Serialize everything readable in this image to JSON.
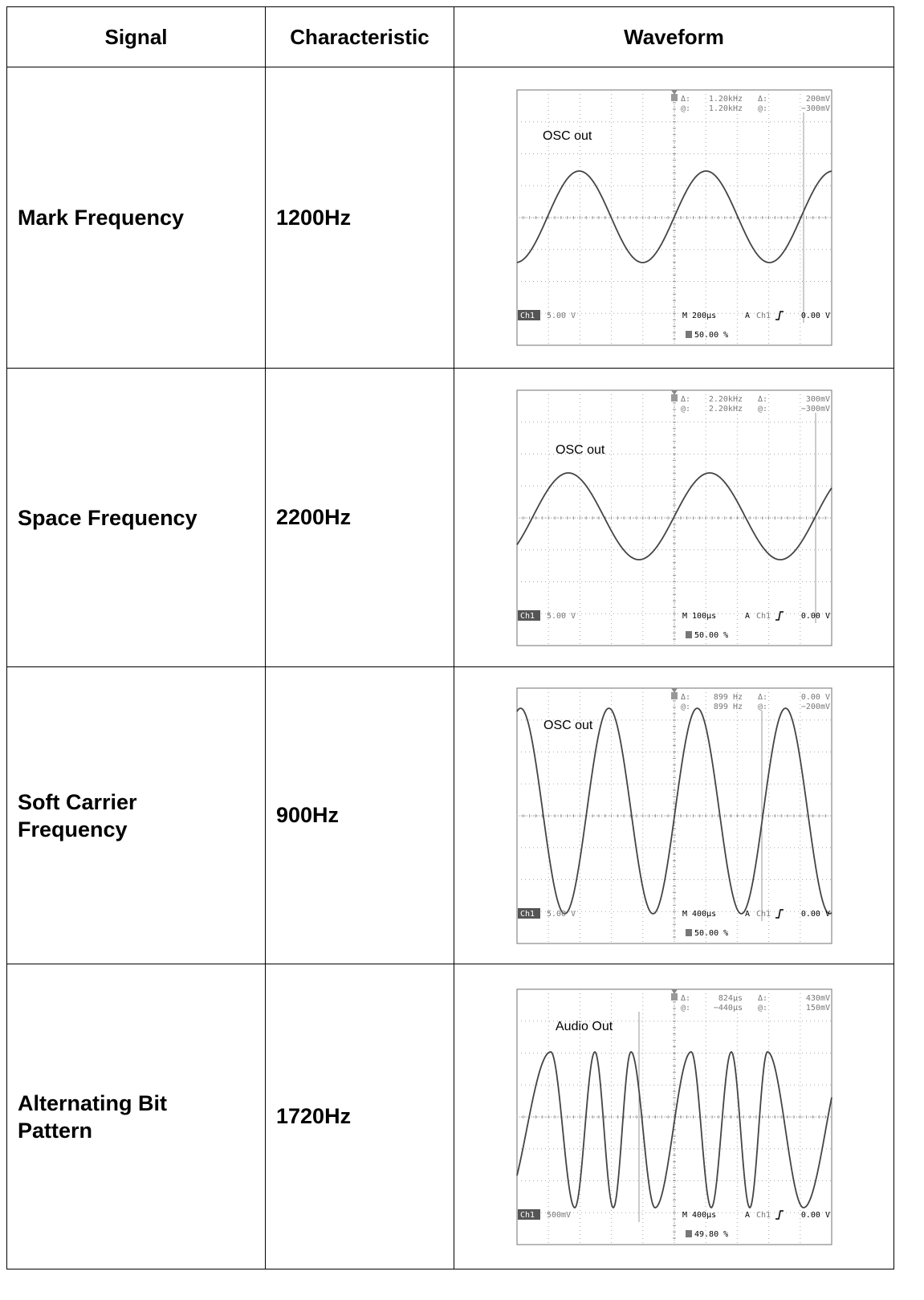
{
  "header": {
    "columns": [
      "Signal",
      "Characteristic",
      "Waveform"
    ]
  },
  "table": {
    "rows": [
      {
        "signal": "Mark Frequency",
        "characteristic": "1200Hz",
        "waveform": {
          "label": "OSC out",
          "cursor_readout": [
            [
              "Δ:",
              "1.20kHz",
              "Δ:",
              "200mV"
            ],
            [
              "@:",
              "1.20kHz",
              "@:",
              "−300mV"
            ]
          ],
          "channel": "Ch1",
          "scale": "5.00 V",
          "timebase": "M 200µs",
          "trigger_mode": "A",
          "trigger_channel": "Ch1",
          "trigger_level": "0.00 V",
          "trigger_position": "50.00 %"
        }
      },
      {
        "signal": "Space Frequency",
        "characteristic": "2200Hz",
        "waveform": {
          "label": "OSC out",
          "cursor_readout": [
            [
              "Δ:",
              "2.20kHz",
              "Δ:",
              "300mV"
            ],
            [
              "@:",
              "2.20kHz",
              "@:",
              "−300mV"
            ]
          ],
          "channel": "Ch1",
          "scale": "5.00 V",
          "timebase": "M 100µs",
          "trigger_mode": "A",
          "trigger_channel": "Ch1",
          "trigger_level": "0.00 V",
          "trigger_position": "50.00 %"
        }
      },
      {
        "signal": "Soft Carrier Frequency",
        "characteristic": "900Hz",
        "waveform": {
          "label": "OSC out",
          "cursor_readout": [
            [
              "Δ:",
              "899 Hz",
              "Δ:",
              "0.00 V"
            ],
            [
              "@:",
              "899 Hz",
              "@:",
              "−200mV"
            ]
          ],
          "channel": "Ch1",
          "scale": "5.00 V",
          "timebase": "M 400µs",
          "trigger_mode": "A",
          "trigger_channel": "Ch1",
          "trigger_level": "0.00 V",
          "trigger_position": "50.00 %"
        }
      },
      {
        "signal": "Alternating Bit Pattern",
        "characteristic": "1720Hz",
        "waveform": {
          "label": "Audio Out",
          "cursor_readout": [
            [
              "Δ:",
              "824µs",
              "Δ:",
              "430mV"
            ],
            [
              "@:",
              "−440µs",
              "@:",
              "150mV"
            ]
          ],
          "channel": "Ch1",
          "scale": "500mV",
          "timebase": "M 400µs",
          "trigger_mode": "A",
          "trigger_channel": "Ch1",
          "trigger_level": "0.00 V",
          "trigger_position": "49.80 %"
        }
      }
    ]
  }
}
